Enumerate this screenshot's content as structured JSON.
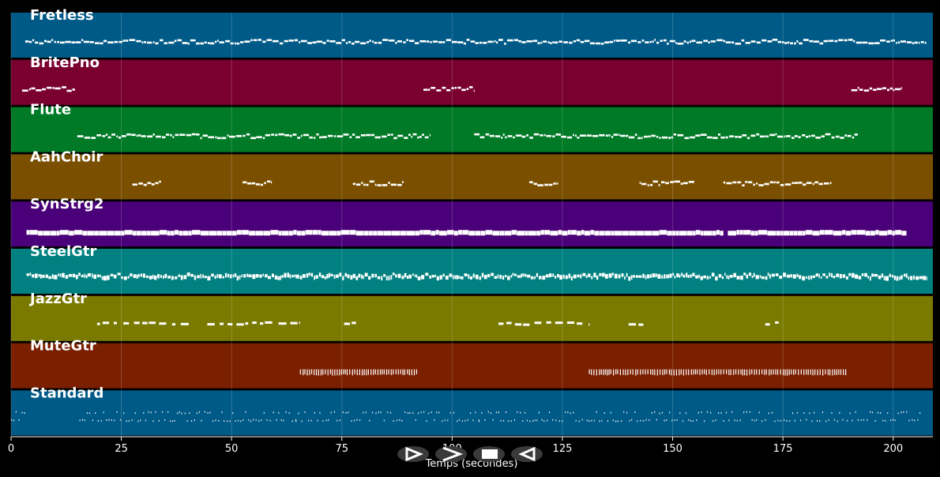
{
  "xaxis": {
    "label": "Temps (secondes)",
    "ticks": [
      0,
      25,
      50,
      75,
      100,
      125,
      150,
      175,
      200
    ],
    "tick_labels": [
      "0",
      "25",
      "50",
      "75",
      "100",
      "125",
      "150",
      "175",
      "200"
    ],
    "range": [
      0,
      209
    ]
  },
  "tracks": [
    {
      "name": "Fretless",
      "color": "#005a87",
      "style": "line",
      "segments": [
        [
          3.2,
          207.5
        ]
      ]
    },
    {
      "name": "BritePno",
      "color": "#7a0030",
      "style": "line",
      "segments": [
        [
          2.5,
          14.5
        ],
        [
          93.5,
          105
        ],
        [
          190.5,
          202
        ]
      ]
    },
    {
      "name": "Flute",
      "color": "#007a26",
      "style": "line",
      "segments": [
        [
          15,
          95
        ],
        [
          105,
          192
        ]
      ]
    },
    {
      "name": "AahChoir",
      "color": "#7a5000",
      "style": "line",
      "segments": [
        [
          27.5,
          34
        ],
        [
          52.5,
          59
        ],
        [
          77.5,
          89
        ],
        [
          117.5,
          124
        ],
        [
          142.5,
          155
        ],
        [
          161.5,
          186
        ]
      ]
    },
    {
      "name": "SynStrg2",
      "color": "#4a0078",
      "style": "thick",
      "segments": [
        [
          3.5,
          161.5
        ],
        [
          162.5,
          203
        ]
      ]
    },
    {
      "name": "SteelGtr",
      "color": "#008080",
      "style": "dense",
      "segments": [
        [
          3.5,
          207.5
        ]
      ]
    },
    {
      "name": "JazzGtr",
      "color": "#7a7a00",
      "style": "sparse",
      "segments": [
        [
          19.5,
          40.5
        ],
        [
          44.5,
          65.5
        ],
        [
          75.5,
          78.5
        ],
        [
          110.5,
          131
        ],
        [
          140,
          143.5
        ],
        [
          171,
          174.5
        ]
      ]
    },
    {
      "name": "MuteGtr",
      "color": "#7a1f00",
      "style": "ticks",
      "segments": [
        [
          65.5,
          92
        ],
        [
          131,
          189.5
        ]
      ]
    },
    {
      "name": "Standard",
      "color": "#005a87",
      "style": "drums",
      "segments": [
        [
          0,
          3
        ],
        [
          15.5,
          36
        ],
        [
          36,
          64.5
        ],
        [
          64.5,
          106
        ],
        [
          106,
          129.5
        ],
        [
          130.5,
          189
        ],
        [
          189.5,
          203
        ],
        [
          203.5,
          206
        ]
      ]
    }
  ],
  "controls": {
    "play_icon": "play-outline-icon",
    "forward_icon": "fast-forward-icon",
    "stop_icon": "stop-icon",
    "rewind_icon": "rewind-icon"
  }
}
